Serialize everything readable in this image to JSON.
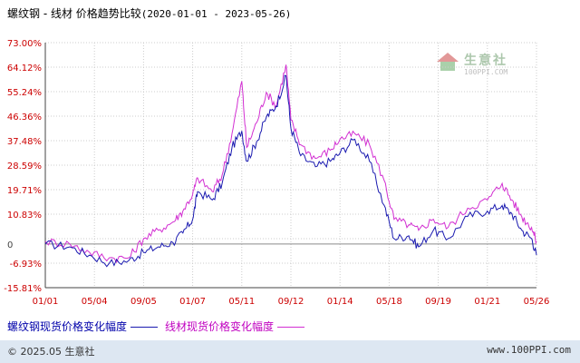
{
  "title": {
    "main": "螺纹钢 - 线材 价格趋势比较",
    "range": "(2020-01-01 - 2023-05-26)"
  },
  "legend": {
    "series1": "螺纹钢现货价格变化幅度",
    "series2": "线材现货价格变化幅度"
  },
  "footer": {
    "copyright": "© 2025.05 生意社",
    "url": "www.100PPI.com"
  },
  "watermark": {
    "name": "生意社",
    "domain": "100PPI.COM"
  },
  "colors": {
    "series1": "#1a1ab0",
    "series2": "#d22fd2",
    "axis": "#444444",
    "grid": "#cccccc",
    "label": "#cc0000",
    "footer_bg": "#dde7f2"
  },
  "chart_data": {
    "type": "line",
    "title": "螺纹钢 - 线材 价格趋势比较",
    "subtitle": "(2020-01-01 - 2023-05-26)",
    "ylim": [
      -15.81,
      73.0
    ],
    "y_ticks": [
      73.0,
      64.12,
      55.24,
      46.36,
      37.48,
      28.59,
      19.71,
      10.83,
      1.95,
      -6.93,
      -15.81
    ],
    "y_tick_labels": [
      "73.00%",
      "64.12%",
      "55.24%",
      "46.36%",
      "37.48%",
      "28.59%",
      "19.71%",
      "10.83%",
      "",
      "-6.93%",
      "-15.81%"
    ],
    "zero_label": "0",
    "x_tick_labels": [
      "01/01",
      "05/04",
      "09/05",
      "01/07",
      "05/11",
      "09/12",
      "01/14",
      "05/18",
      "09/19",
      "01/21",
      "05/26"
    ],
    "grid": true,
    "legend_position": "bottom-left",
    "x": [
      0,
      0.05,
      0.09,
      0.13,
      0.17,
      0.2,
      0.23,
      0.26,
      0.28,
      0.3,
      0.31,
      0.34,
      0.36,
      0.38,
      0.4,
      0.41,
      0.43,
      0.45,
      0.47,
      0.49,
      0.5,
      0.52,
      0.55,
      0.58,
      0.6,
      0.63,
      0.66,
      0.69,
      0.71,
      0.74,
      0.76,
      0.79,
      0.82,
      0.86,
      0.9,
      0.93,
      0.95,
      0.97,
      0.99,
      1.0
    ],
    "series": [
      {
        "name": "螺纹钢现货价格变化幅度",
        "values": [
          0,
          -1,
          -4,
          -7,
          -6,
          -3,
          -1,
          0.5,
          4,
          9,
          19,
          16,
          22,
          35,
          41,
          30,
          37,
          46,
          50,
          61,
          42,
          32,
          28,
          30,
          33,
          38,
          30,
          14,
          2,
          3,
          -1,
          5,
          2,
          10,
          12,
          14,
          11,
          5,
          2,
          -4
        ]
      },
      {
        "name": "线材现货价格变化幅度",
        "values": [
          1,
          0,
          -3,
          -5,
          -5,
          2,
          5,
          8,
          12,
          18,
          24,
          19,
          25,
          40,
          59,
          35,
          44,
          55,
          50,
          65,
          45,
          36,
          31,
          34,
          38,
          40,
          36,
          23,
          9,
          7,
          5,
          9,
          6,
          13,
          16,
          22,
          16,
          10,
          6,
          1
        ]
      }
    ]
  }
}
